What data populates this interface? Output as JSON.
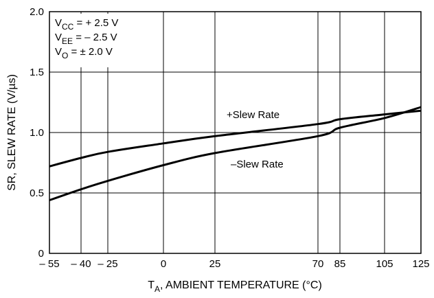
{
  "chart_data": {
    "type": "line",
    "xlabel_main": "T",
    "xlabel_sub": "A",
    "xlabel_rest": ", AMBIENT TEMPERATURE (°C)",
    "ylabel": "SR, SLEW RATE (V/µs)",
    "x_ticks": [
      -55,
      -40,
      -25,
      0,
      25,
      70,
      85,
      105,
      125
    ],
    "x_tick_labels": [
      "– 55",
      "– 40",
      "– 25",
      "0",
      "25",
      "70",
      "85",
      "105",
      "125"
    ],
    "y_ticks": [
      0,
      0.5,
      1.0,
      1.5,
      2.0
    ],
    "y_tick_labels": [
      "0",
      "0.5",
      "1.0",
      "1.5",
      "2.0"
    ],
    "ylim": [
      0,
      2.0
    ],
    "grid": true,
    "conditions": [
      {
        "main": "V",
        "sub": "CC",
        "rest": " = + 2.5 V"
      },
      {
        "main": "V",
        "sub": "EE",
        "rest": " = – 2.5 V"
      },
      {
        "main": "V",
        "sub": "O",
        "rest": " = ± 2.0 V"
      }
    ],
    "series": [
      {
        "name": "+Slew Rate",
        "x": [
          -55,
          -40,
          -25,
          0,
          25,
          70,
          85,
          105,
          125
        ],
        "values": [
          0.72,
          0.79,
          0.84,
          0.91,
          0.97,
          1.07,
          1.11,
          1.15,
          1.18
        ]
      },
      {
        "name": "–Slew Rate",
        "x": [
          -55,
          -40,
          -25,
          0,
          25,
          70,
          85,
          105,
          125
        ],
        "values": [
          0.44,
          0.53,
          0.6,
          0.73,
          0.83,
          0.97,
          1.04,
          1.12,
          1.21
        ]
      }
    ]
  }
}
